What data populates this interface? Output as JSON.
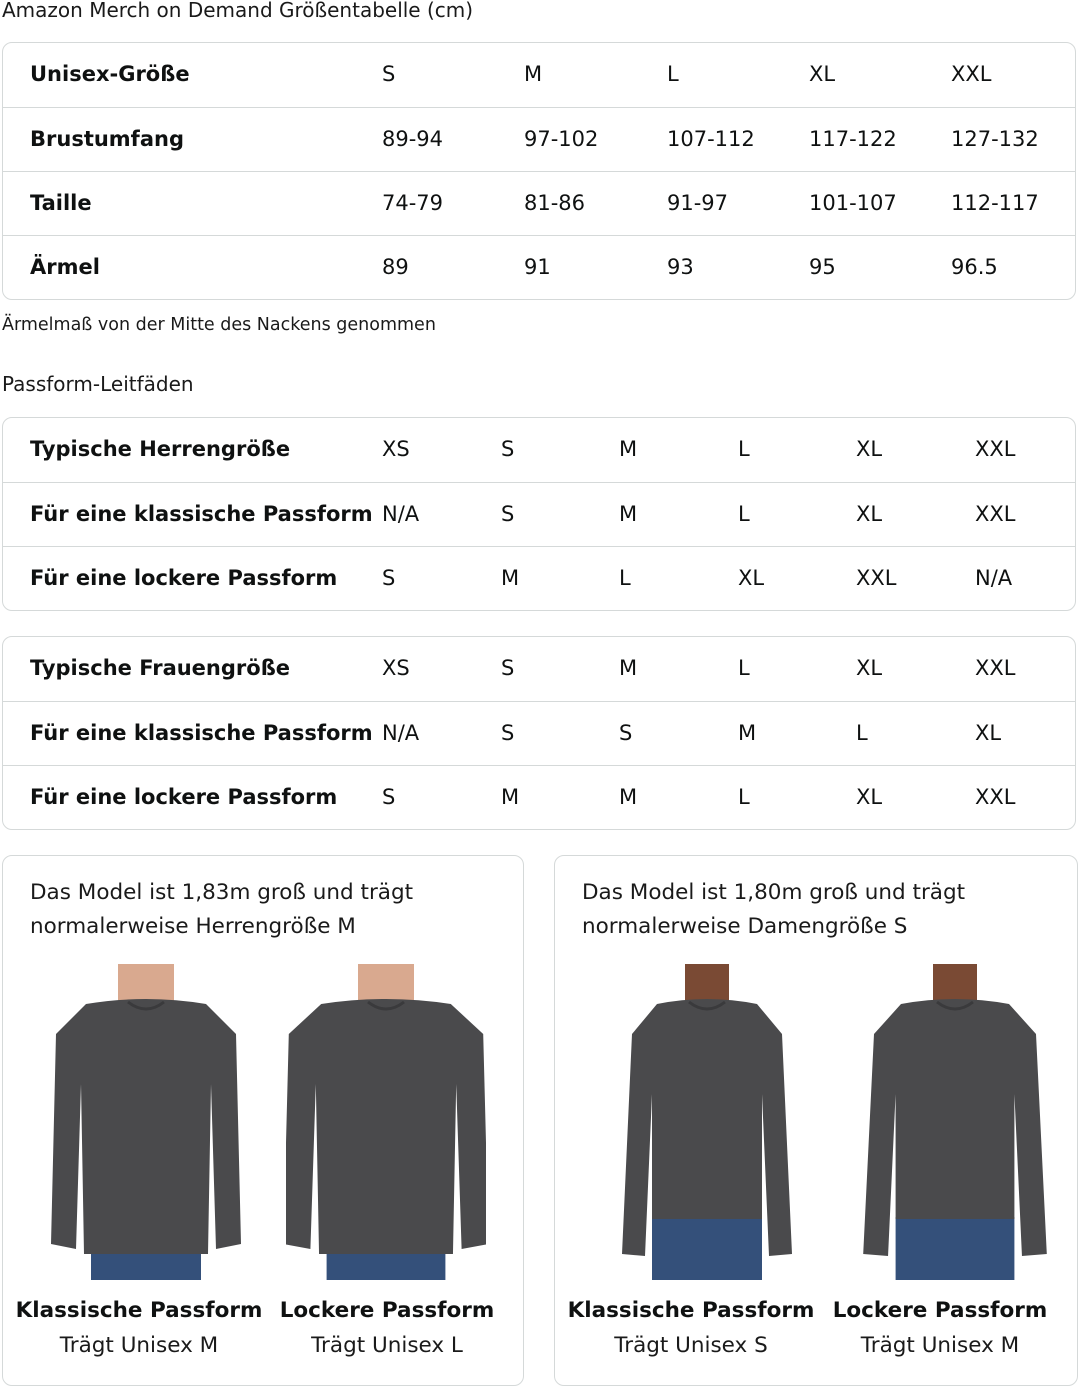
{
  "title": "Amazon Merch on Demand Größentabelle (cm)",
  "size_table": {
    "rows": [
      {
        "label": "Unisex-Größe",
        "values": [
          "S",
          "M",
          "L",
          "XL",
          "XXL"
        ]
      },
      {
        "label": "Brustumfang",
        "values": [
          "89-94",
          "97-102",
          "107-112",
          "117-122",
          "127-132"
        ]
      },
      {
        "label": "Taille",
        "values": [
          "74-79",
          "81-86",
          "91-97",
          "101-107",
          "112-117"
        ]
      },
      {
        "label": "Ärmel",
        "values": [
          "89",
          "91",
          "93",
          "95",
          "96.5"
        ]
      }
    ]
  },
  "sleeve_note": "Ärmelmaß von der Mitte des Nackens genommen",
  "fit_title": "Passform-Leitfäden",
  "men_table": {
    "rows": [
      {
        "label": "Typische Herrengröße",
        "values": [
          "XS",
          "S",
          "M",
          "L",
          "XL",
          "XXL"
        ]
      },
      {
        "label": "Für eine klassische Passform",
        "values": [
          "N/A",
          "S",
          "M",
          "L",
          "XL",
          "XXL"
        ]
      },
      {
        "label": "Für eine lockere Passform",
        "values": [
          "S",
          "M",
          "L",
          "XL",
          "XXL",
          "N/A"
        ]
      }
    ]
  },
  "women_table": {
    "rows": [
      {
        "label": "Typische Frauengröße",
        "values": [
          "XS",
          "S",
          "M",
          "L",
          "XL",
          "XXL"
        ]
      },
      {
        "label": "Für eine klassische Passform",
        "values": [
          "N/A",
          "S",
          "S",
          "M",
          "L",
          "XL"
        ]
      },
      {
        "label": "Für eine lockere Passform",
        "values": [
          "S",
          "M",
          "M",
          "L",
          "XL",
          "XXL"
        ]
      }
    ]
  },
  "cards": [
    {
      "text": "Das Model ist 1,83m groß und trägt normalerweise Herrengröße M",
      "figures": [
        {
          "name": "Klassische Passform",
          "sub": "Trägt Unisex M",
          "fit": "classic",
          "model": "male"
        },
        {
          "name": "Lockere Passform",
          "sub": "Trägt Unisex L",
          "fit": "loose",
          "model": "male"
        }
      ]
    },
    {
      "text": "Das Model ist 1,80m groß und trägt normalerweise Damengröße S",
      "figures": [
        {
          "name": "Klassische Passform",
          "sub": "Trägt Unisex S",
          "fit": "classic",
          "model": "female"
        },
        {
          "name": "Lockere Passform",
          "sub": "Trägt Unisex M",
          "fit": "loose",
          "model": "female"
        }
      ]
    }
  ],
  "colors": {
    "border": "#d5d9d9",
    "sweatshirt": "#4a4a4c",
    "jeans": "#34507a",
    "skin_male": "#d9a98f",
    "skin_female": "#7a4a34"
  }
}
